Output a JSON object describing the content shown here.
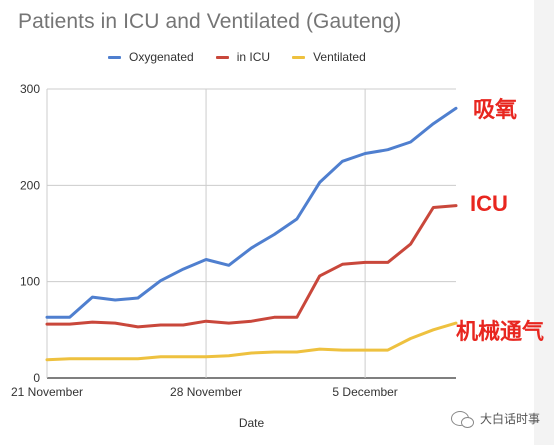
{
  "chart_data": {
    "type": "line",
    "title": "Patients in ICU and Ventilated (Gauteng)",
    "xlabel": "Date",
    "ylabel": "",
    "ylim": [
      0,
      300
    ],
    "yticks": [
      0,
      100,
      200,
      300
    ],
    "x": [
      "2021-11-21",
      "2021-11-22",
      "2021-11-23",
      "2021-11-24",
      "2021-11-25",
      "2021-11-26",
      "2021-11-27",
      "2021-11-28",
      "2021-11-29",
      "2021-11-30",
      "2021-12-01",
      "2021-12-02",
      "2021-12-03",
      "2021-12-04",
      "2021-12-05",
      "2021-12-06",
      "2021-12-07",
      "2021-12-08",
      "2021-12-09"
    ],
    "xticks": [
      {
        "date": "2021-11-21",
        "label": "21 November"
      },
      {
        "date": "2021-11-28",
        "label": "28 November"
      },
      {
        "date": "2021-12-05",
        "label": "5 December"
      }
    ],
    "grid": true,
    "legend_position": "top",
    "series": [
      {
        "name": "Oxygenated",
        "color": "#4f7fcf",
        "values": [
          63,
          63,
          84,
          81,
          83,
          101,
          113,
          123,
          117,
          135,
          149,
          165,
          203,
          225,
          233,
          237,
          245,
          264,
          280
        ]
      },
      {
        "name": "in ICU",
        "color": "#c9473b",
        "values": [
          56,
          56,
          58,
          57,
          53,
          55,
          55,
          59,
          57,
          59,
          63,
          63,
          106,
          118,
          120,
          120,
          139,
          177,
          179
        ]
      },
      {
        "name": "Ventilated",
        "color": "#eec13f",
        "values": [
          19,
          20,
          20,
          20,
          20,
          22,
          22,
          22,
          23,
          26,
          27,
          27,
          30,
          29,
          29,
          29,
          41,
          50,
          57
        ]
      }
    ],
    "annotations": [
      {
        "text": "吸氧",
        "series": "Oxygenated"
      },
      {
        "text": "ICU",
        "series": "in ICU"
      },
      {
        "text": "机械通气",
        "series": "Ventilated"
      }
    ]
  },
  "watermark": {
    "text": "大白话时事"
  }
}
